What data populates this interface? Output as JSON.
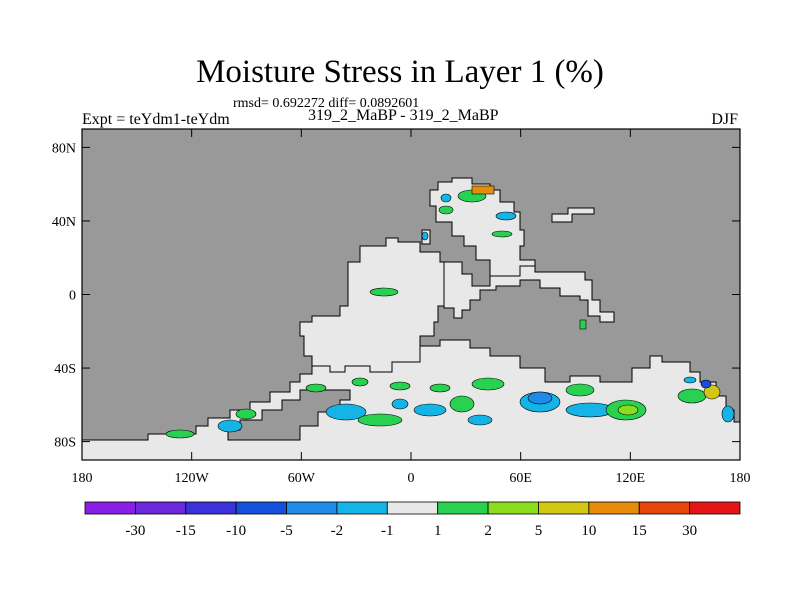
{
  "title": "Moisture Stress in Layer 1 (%)",
  "stats_line": "rmsd= 0.692272 diff= 0.0892601",
  "experiment_label": "Expt = teYdm1-teYdm",
  "case_label": "319_2_MaBP - 319_2_MaBP",
  "season": "DJF",
  "colors": {
    "land_mask": "#999999",
    "ocean_neutral": "#e8e8e8"
  },
  "map": {
    "lat_ticks": [
      {
        "value": 80,
        "label": "80N"
      },
      {
        "value": 40,
        "label": "40N"
      },
      {
        "value": 0,
        "label": "0"
      },
      {
        "value": -40,
        "label": "40S"
      },
      {
        "value": -80,
        "label": "80S"
      }
    ],
    "lon_ticks": [
      {
        "value": -180,
        "label": "180"
      },
      {
        "value": -120,
        "label": "120W"
      },
      {
        "value": -60,
        "label": "60W"
      },
      {
        "value": 0,
        "label": "0"
      },
      {
        "value": 60,
        "label": "60E"
      },
      {
        "value": 120,
        "label": "120E"
      },
      {
        "value": 180,
        "label": "180"
      }
    ],
    "lon_range": [
      -180,
      180
    ],
    "lat_range": [
      -90,
      90
    ]
  },
  "colorbar": {
    "colors": [
      "#8a1ee6",
      "#6e28dc",
      "#3c32dc",
      "#1450dc",
      "#1e8ce6",
      "#14b4e6",
      "#e8e8e8",
      "#28d250",
      "#8cdc1e",
      "#d2c814",
      "#e68c0a",
      "#e6460a",
      "#e61414"
    ],
    "labels": [
      "-30",
      "-15",
      "-10",
      "-5",
      "-2",
      "-1",
      "1",
      "2",
      "5",
      "10",
      "15",
      "30"
    ]
  }
}
